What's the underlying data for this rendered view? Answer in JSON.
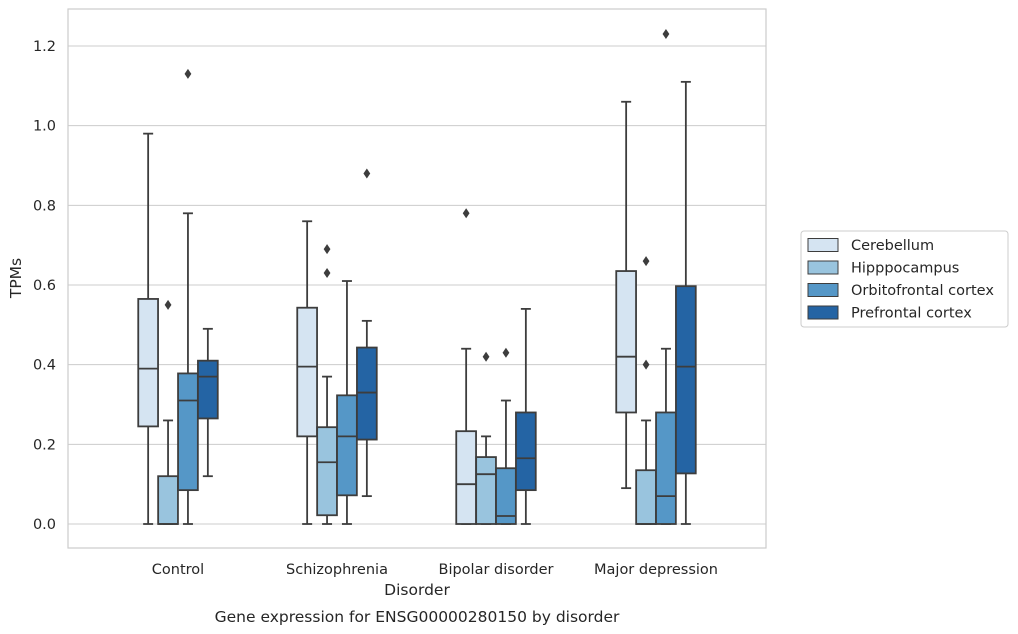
{
  "chart_data": {
    "type": "box",
    "caption": "Gene expression for ENSG00000280150 by disorder",
    "xlabel": "Disorder",
    "ylabel": "TPMs",
    "ylim": [
      -0.06,
      1.29
    ],
    "yticks": [
      "0.0",
      "0.2",
      "0.4",
      "0.6",
      "0.8",
      "1.0",
      "1.2"
    ],
    "grid": "horizontal",
    "legend_position": "right",
    "categories": [
      "Control",
      "Schizophrenia",
      "Bipolar disorder",
      "Major depression"
    ],
    "series": [
      {
        "name": "Cerebellum",
        "color": "#d5e4f2",
        "boxes": [
          {
            "whisker_low": 0.0,
            "q1": 0.245,
            "median": 0.39,
            "q3": 0.565,
            "whisker_high": 0.98,
            "outliers": []
          },
          {
            "whisker_low": 0.0,
            "q1": 0.22,
            "median": 0.395,
            "q3": 0.543,
            "whisker_high": 0.76,
            "outliers": []
          },
          {
            "whisker_low": 0.0,
            "q1": 0.0,
            "median": 0.1,
            "q3": 0.233,
            "whisker_high": 0.44,
            "outliers": [
              0.78
            ]
          },
          {
            "whisker_low": 0.09,
            "q1": 0.28,
            "median": 0.42,
            "q3": 0.635,
            "whisker_high": 1.06,
            "outliers": []
          }
        ]
      },
      {
        "name": "Hipppocampus",
        "color": "#99c4de",
        "boxes": [
          {
            "whisker_low": 0.0,
            "q1": 0.0,
            "median": 0.0,
            "q3": 0.12,
            "whisker_high": 0.26,
            "outliers": [
              0.55
            ]
          },
          {
            "whisker_low": 0.0,
            "q1": 0.022,
            "median": 0.155,
            "q3": 0.243,
            "whisker_high": 0.37,
            "outliers": [
              0.63,
              0.69
            ]
          },
          {
            "whisker_low": 0.0,
            "q1": 0.0,
            "median": 0.125,
            "q3": 0.168,
            "whisker_high": 0.22,
            "outliers": [
              0.42
            ]
          },
          {
            "whisker_low": 0.0,
            "q1": 0.0,
            "median": 0.0,
            "q3": 0.135,
            "whisker_high": 0.26,
            "outliers": [
              0.4,
              0.66
            ]
          }
        ]
      },
      {
        "name": "Orbitofrontal cortex",
        "color": "#5597c7",
        "boxes": [
          {
            "whisker_low": 0.0,
            "q1": 0.085,
            "median": 0.31,
            "q3": 0.378,
            "whisker_high": 0.78,
            "outliers": [
              1.13
            ]
          },
          {
            "whisker_low": 0.0,
            "q1": 0.072,
            "median": 0.22,
            "q3": 0.323,
            "whisker_high": 0.61,
            "outliers": []
          },
          {
            "whisker_low": 0.0,
            "q1": 0.0,
            "median": 0.02,
            "q3": 0.14,
            "whisker_high": 0.31,
            "outliers": [
              0.43
            ]
          },
          {
            "whisker_low": 0.0,
            "q1": 0.0,
            "median": 0.07,
            "q3": 0.28,
            "whisker_high": 0.44,
            "outliers": [
              1.23
            ]
          }
        ]
      },
      {
        "name": "Prefrontal cortex",
        "color": "#2464a4",
        "boxes": [
          {
            "whisker_low": 0.12,
            "q1": 0.265,
            "median": 0.37,
            "q3": 0.41,
            "whisker_high": 0.49,
            "outliers": []
          },
          {
            "whisker_low": 0.07,
            "q1": 0.212,
            "median": 0.33,
            "q3": 0.443,
            "whisker_high": 0.51,
            "outliers": [
              0.88
            ]
          },
          {
            "whisker_low": 0.0,
            "q1": 0.085,
            "median": 0.165,
            "q3": 0.28,
            "whisker_high": 0.54,
            "outliers": []
          },
          {
            "whisker_low": 0.0,
            "q1": 0.127,
            "median": 0.395,
            "q3": 0.597,
            "whisker_high": 1.11,
            "outliers": []
          }
        ]
      }
    ]
  }
}
